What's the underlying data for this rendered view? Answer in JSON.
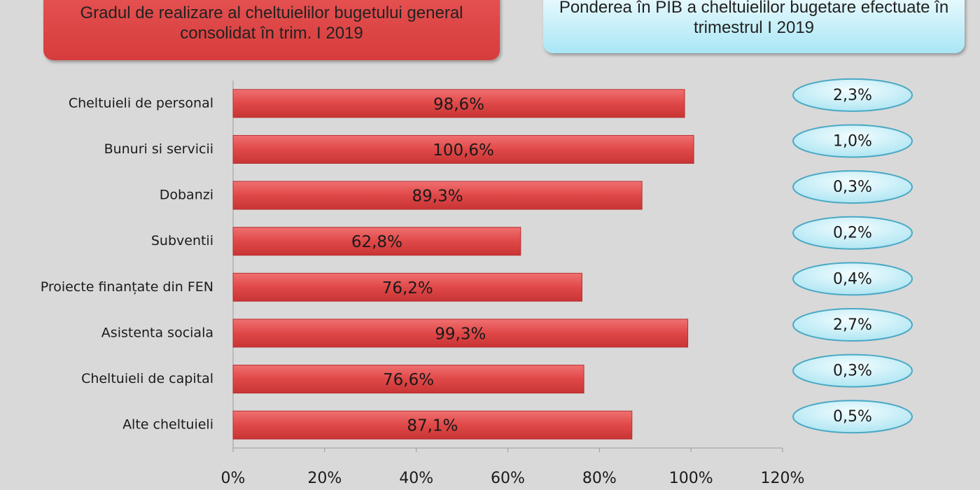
{
  "chart_data": {
    "type": "bar",
    "orientation": "horizontal",
    "title": "Gradul de realizare al cheltuielilor bugetului general consolidat în trim. I 2019",
    "categories": [
      "Cheltuieli de personal",
      "Bunuri si servicii",
      "Dobanzi",
      "Subventii",
      "Proiecte finanțate din FEN",
      "Asistenta sociala",
      "Cheltuieli de capital",
      "Alte cheltuieli"
    ],
    "values": [
      98.6,
      100.6,
      89.3,
      62.8,
      76.2,
      99.3,
      76.6,
      87.1
    ],
    "value_labels": [
      "98,6%",
      "100,6%",
      "89,3%",
      "62,8%",
      "76,2%",
      "99,3%",
      "76,6%",
      "87,1%"
    ],
    "color": "#e04a4a",
    "xlim": [
      0,
      120
    ],
    "xticks": [
      {
        "value": 0,
        "label": "0%"
      },
      {
        "value": 20,
        "label": "20%"
      },
      {
        "value": 40,
        "label": "40%"
      },
      {
        "value": 60,
        "label": "60%"
      },
      {
        "value": 80,
        "label": "80%"
      },
      {
        "value": 100,
        "label": "100%"
      },
      {
        "value": 120,
        "label": "120%"
      }
    ],
    "grid": false,
    "pib_share": {
      "title": "Ponderea în PIB a cheltuielilor bugetare efectuate în trimestrul I 2019",
      "values": [
        2.3,
        1.0,
        0.3,
        0.2,
        0.4,
        2.7,
        0.3,
        0.5
      ],
      "value_labels": [
        "2,3%",
        "1,0%",
        "0,3%",
        "0,2%",
        "0,4%",
        "2,7%",
        "0,3%",
        "0,5%"
      ],
      "color": "#c9f0f8"
    }
  }
}
